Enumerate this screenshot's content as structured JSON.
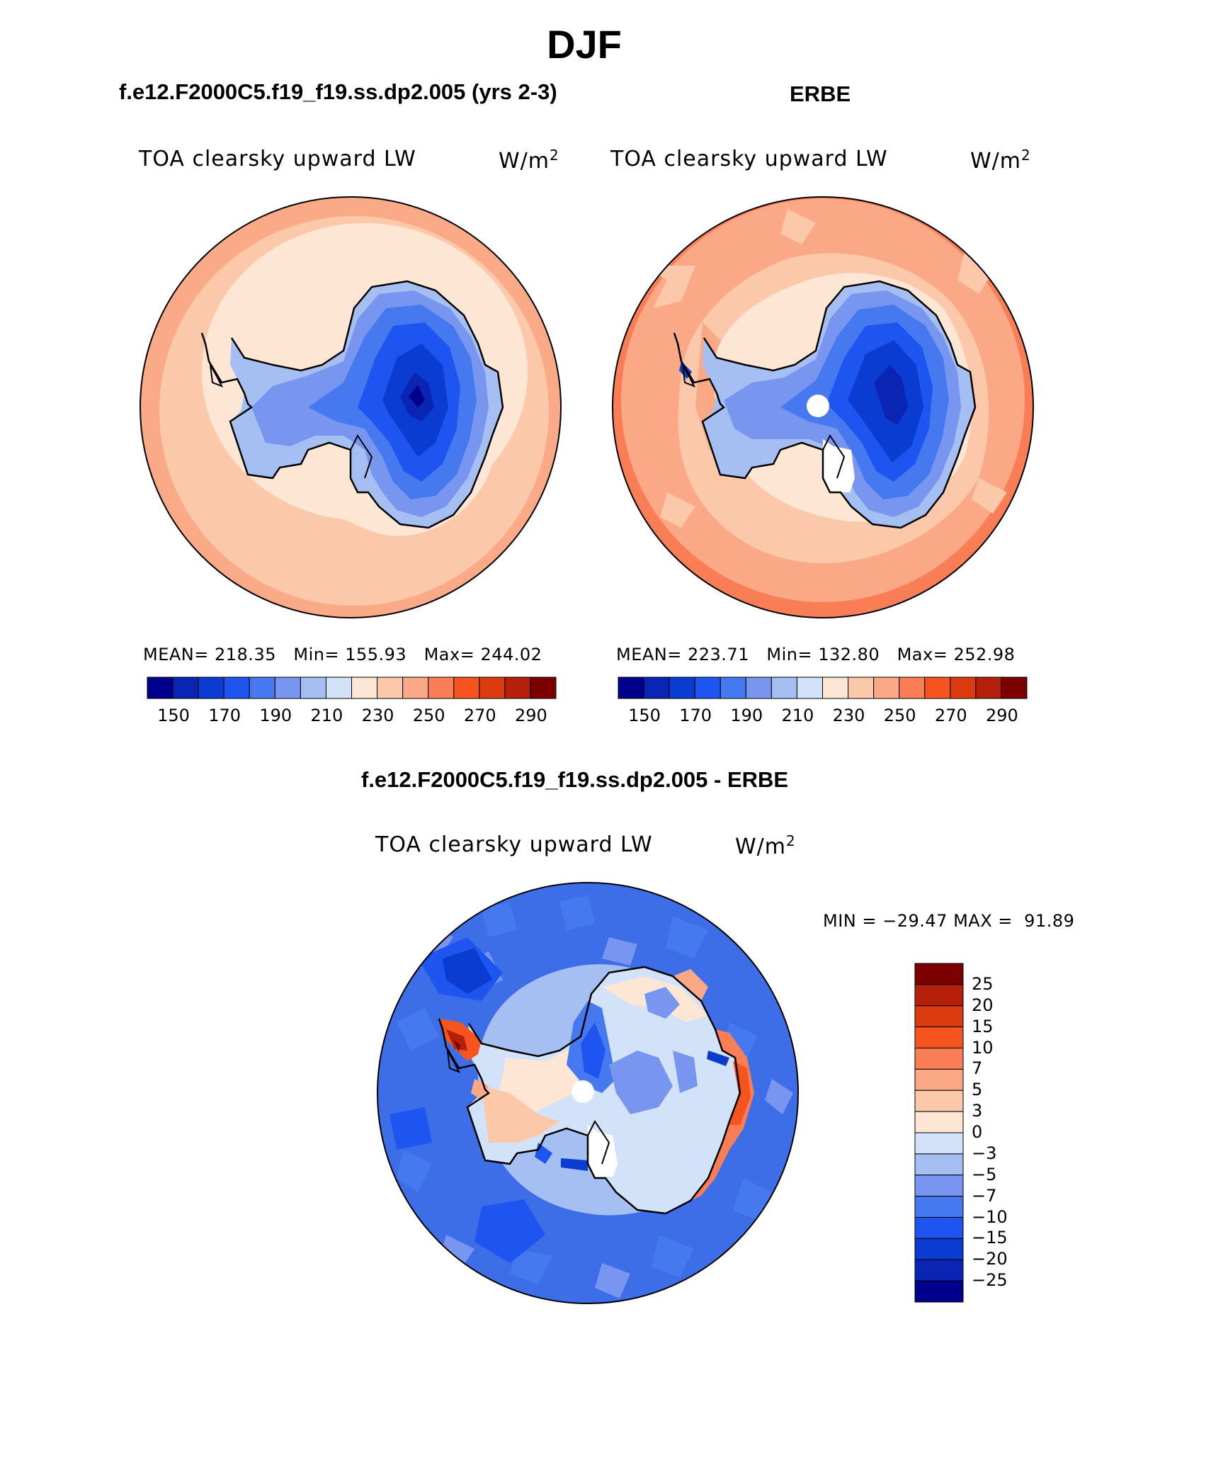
{
  "title": "DJF",
  "panels": [
    {
      "case": "f.e12.F2000C5.f19_f19.ss.dp2.005 (yrs 2-3)",
      "label": "TOA clearsky upward LW",
      "units": "W/m",
      "units_exp": "2",
      "stats": {
        "mean_label": "MEAN=",
        "mean": "218.35",
        "min_label": "Min=",
        "min": "155.93",
        "max_label": "Max=",
        "max": "244.02"
      }
    },
    {
      "case": "ERBE",
      "label": "TOA clearsky upward LW",
      "units": "W/m",
      "units_exp": "2",
      "stats": {
        "mean_label": "MEAN=",
        "mean": "223.71",
        "min_label": "Min=",
        "min": "132.80",
        "max_label": "Max=",
        "max": "252.98"
      }
    }
  ],
  "abs_colorbar": {
    "colors": [
      "#00008c",
      "#0a24b4",
      "#0a3cd2",
      "#1e55f0",
      "#4678f0",
      "#7896f0",
      "#a6bff2",
      "#d2e2f8",
      "#fde6d4",
      "#fcc8aa",
      "#fba887",
      "#f97e55",
      "#f5541e",
      "#dc3a0f",
      "#b4200a",
      "#7d0000"
    ],
    "tick_labels": [
      "150",
      "170",
      "190",
      "210",
      "230",
      "250",
      "270",
      "290"
    ]
  },
  "diff_panel": {
    "case": "f.e12.F2000C5.f19_f19.ss.dp2.005 - ERBE",
    "label": "TOA clearsky upward LW",
    "units": "W/m",
    "units_exp": "2",
    "min_label": "MIN =",
    "min": "−29.47",
    "max_label": "MAX =",
    "max": "91.89"
  },
  "diff_colorbar": {
    "colors": [
      "#7d0000",
      "#b4200a",
      "#dc3a0f",
      "#f5541e",
      "#f97e55",
      "#fba887",
      "#fcc8aa",
      "#fde6d4",
      "#d2e2f8",
      "#a6bff2",
      "#7896f0",
      "#4678f0",
      "#1e55f0",
      "#0a3cd2",
      "#0a24b4",
      "#00008c"
    ],
    "tick_labels": [
      "25",
      "20",
      "15",
      "10",
      "7",
      "5",
      "3",
      "0",
      "−3",
      "−5",
      "−7",
      "−10",
      "−15",
      "−20",
      "−25"
    ]
  },
  "colors": {
    "ocean_model": "#fccbb0",
    "ocean_erbe": "#fbaa88",
    "ocean_diff": "#3d6ee8",
    "land_line": "#000000"
  }
}
